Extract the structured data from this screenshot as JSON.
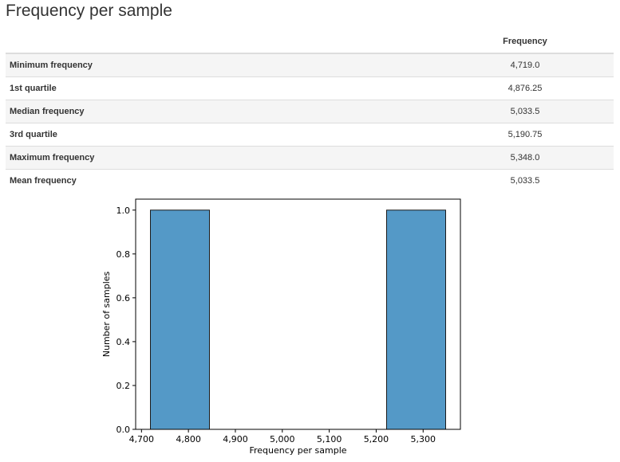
{
  "page": {
    "title": "Frequency per sample"
  },
  "table": {
    "column_header": "Frequency",
    "rows": [
      {
        "label": "Minimum frequency",
        "value": "4,719.0"
      },
      {
        "label": "1st quartile",
        "value": "4,876.25"
      },
      {
        "label": "Median frequency",
        "value": "5,033.5"
      },
      {
        "label": "3rd quartile",
        "value": "5,190.75"
      },
      {
        "label": "Maximum frequency",
        "value": "5,348.0"
      },
      {
        "label": "Mean frequency",
        "value": "5,033.5"
      }
    ]
  },
  "chart_data": {
    "type": "bar",
    "title": "",
    "xlabel": "Frequency per sample",
    "ylabel": "Number of samples",
    "bins": [
      {
        "start": 4719.0,
        "end": 4844.8,
        "count": 1.0
      },
      {
        "start": 4844.8,
        "end": 4970.6,
        "count": 0.0
      },
      {
        "start": 4970.6,
        "end": 5096.4,
        "count": 0.0
      },
      {
        "start": 5096.4,
        "end": 5222.2,
        "count": 0.0
      },
      {
        "start": 5222.2,
        "end": 5348.0,
        "count": 1.0
      }
    ],
    "xlim": [
      4687.55,
      5379.45
    ],
    "ylim": [
      0,
      1.05
    ],
    "xticks": [
      {
        "value": 4700,
        "label": "4,700"
      },
      {
        "value": 4800,
        "label": "4,800"
      },
      {
        "value": 4900,
        "label": "4,900"
      },
      {
        "value": 5000,
        "label": "5,000"
      },
      {
        "value": 5100,
        "label": "5,100"
      },
      {
        "value": 5200,
        "label": "5,200"
      },
      {
        "value": 5300,
        "label": "5,300"
      }
    ],
    "yticks": [
      {
        "value": 0.0,
        "label": "0.0"
      },
      {
        "value": 0.2,
        "label": "0.2"
      },
      {
        "value": 0.4,
        "label": "0.4"
      },
      {
        "value": 0.6,
        "label": "0.6"
      },
      {
        "value": 0.8,
        "label": "0.8"
      },
      {
        "value": 1.0,
        "label": "1.0"
      }
    ],
    "bar_color": "#5499c7",
    "bar_edge_color": "#1a1a1a",
    "grid": false,
    "legend": false
  }
}
